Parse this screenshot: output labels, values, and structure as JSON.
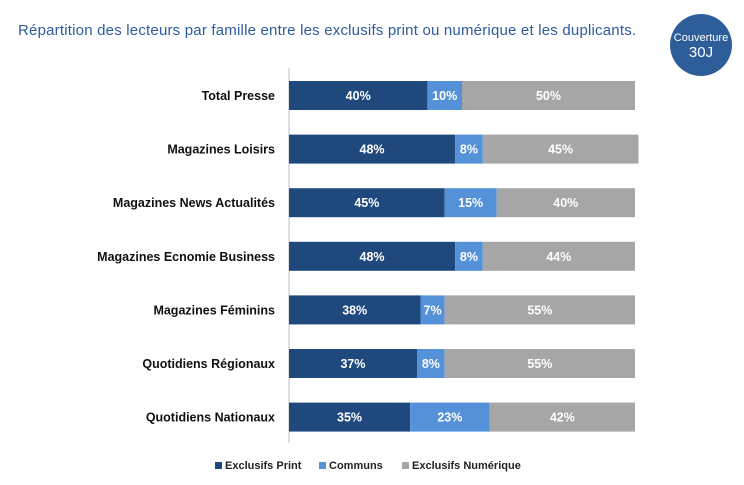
{
  "page": {
    "title": "Répartition des lecteurs par famille entre les exclusifs print ou numérique et les duplicants.",
    "badge": {
      "label": "Couverture",
      "value": "30J"
    }
  },
  "chart_data": {
    "type": "bar",
    "orientation": "horizontal",
    "stacked": true,
    "normalized": true,
    "title": "Répartition des lecteurs par famille entre les exclusifs print ou numérique et les duplicants.",
    "xlabel": "",
    "ylabel": "",
    "xlim": [
      0,
      100
    ],
    "grid": false,
    "legend_position": "bottom",
    "categories": [
      "Total Presse",
      "Magazines Loisirs",
      "Magazines News Actualités",
      "Magazines Ecnomie Business",
      "Magazines Féminins",
      "Quotidiens Régionaux",
      "Quotidiens Nationaux"
    ],
    "series": [
      {
        "name": "Exclusifs Print",
        "color": "#1f497d",
        "values": [
          40,
          48,
          45,
          48,
          38,
          37,
          35
        ],
        "labels": [
          "40%",
          "48%",
          "45%",
          "48%",
          "38%",
          "37%",
          "35%"
        ]
      },
      {
        "name": "Communs",
        "color": "#5591d9",
        "values": [
          10,
          8,
          15,
          8,
          7,
          8,
          23
        ],
        "labels": [
          "10%",
          "8%",
          "15%",
          "8%",
          "7%",
          "8%",
          "23%"
        ]
      },
      {
        "name": "Exclusifs Numérique",
        "color": "#a6a6a6",
        "values": [
          50,
          45,
          40,
          44,
          55,
          55,
          42
        ],
        "labels": [
          "50%",
          "45%",
          "40%",
          "44%",
          "55%",
          "55%",
          "42%"
        ]
      }
    ]
  }
}
